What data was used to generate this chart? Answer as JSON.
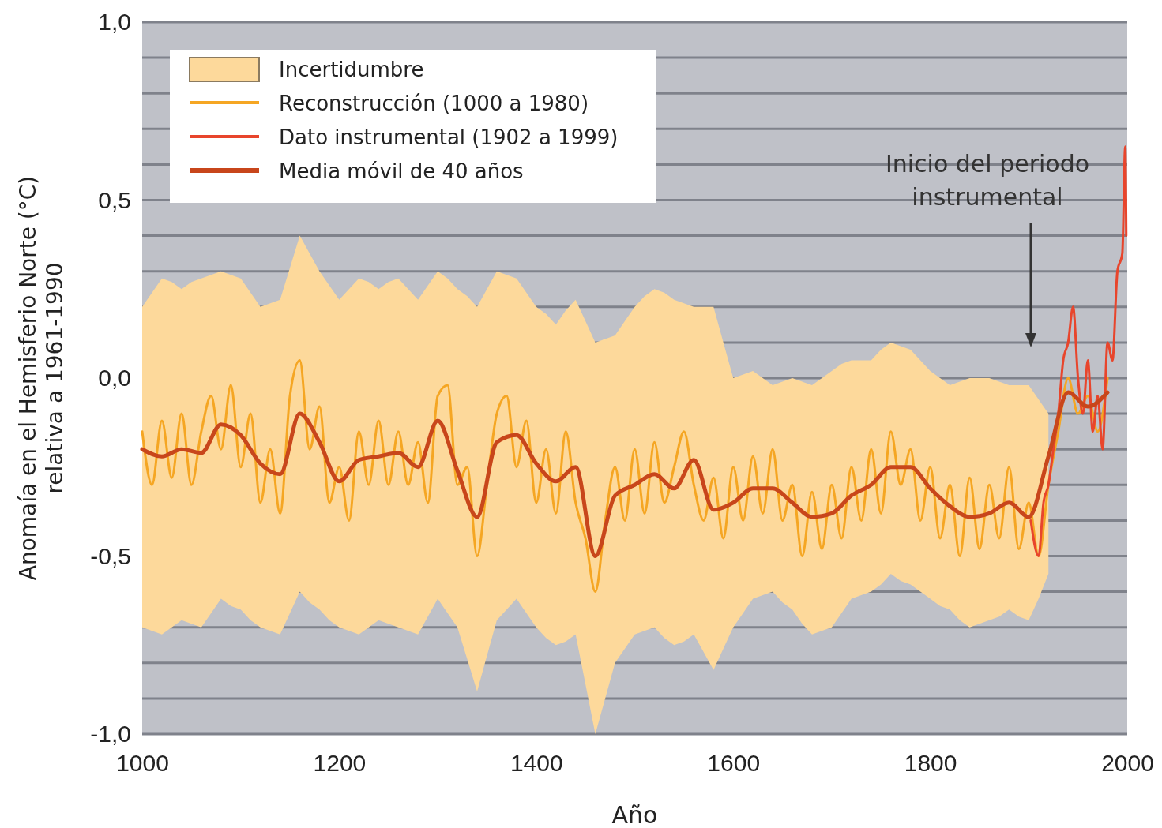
{
  "chart_data": {
    "type": "line",
    "xlabel": "Año",
    "ylabel": "Anomaía en el Hemisferio Norte (°C)\nrelativa a 1961-1990",
    "xlim": [
      1000,
      2000
    ],
    "xticks": [
      1000,
      1200,
      1400,
      1600,
      1800,
      2000
    ],
    "ylim": [
      -1.0,
      1.0
    ],
    "yticks": [
      {
        "value": -1.0,
        "label": "-1,0"
      },
      {
        "value": -0.9,
        "label": null
      },
      {
        "value": -0.8,
        "label": null
      },
      {
        "value": -0.7,
        "label": null
      },
      {
        "value": -0.6,
        "label": null
      },
      {
        "value": -0.5,
        "label": "-0,5"
      },
      {
        "value": -0.4,
        "label": null
      },
      {
        "value": -0.3,
        "label": null
      },
      {
        "value": -0.2,
        "label": null
      },
      {
        "value": -0.1,
        "label": null
      },
      {
        "value": 0,
        "label": "0,0"
      },
      {
        "value": 0.1,
        "label": null
      },
      {
        "value": 0.2,
        "label": null
      },
      {
        "value": 0.3,
        "label": null
      },
      {
        "value": 0.4,
        "label": null
      },
      {
        "value": 0.5,
        "label": "0,5"
      },
      {
        "value": 0.6,
        "label": null
      },
      {
        "value": 0.7,
        "label": null
      },
      {
        "value": 0.8,
        "label": null
      },
      {
        "value": 0.9,
        "label": null
      },
      {
        "value": 1.0,
        "label": "1,0"
      }
    ],
    "grid": "y",
    "legend": "top left",
    "annotations": [
      "Inicio del periodo\ninstrumental"
    ],
    "series": [
      {
        "name": "Incertidumbre",
        "type": "area",
        "color": "#fdd99b"
      },
      {
        "name": "Reconstrucción (1000 a 1980)",
        "color": "#f5a623",
        "x": [
          1000,
          1010,
          1020,
          1030,
          1040,
          1050,
          1060,
          1070,
          1080,
          1090,
          1100,
          1110,
          1120,
          1130,
          1140,
          1150,
          1160,
          1170,
          1180,
          1190,
          1200,
          1210,
          1220,
          1230,
          1240,
          1250,
          1260,
          1270,
          1280,
          1290,
          1300,
          1310,
          1320,
          1330,
          1340,
          1350,
          1360,
          1370,
          1380,
          1390,
          1400,
          1410,
          1420,
          1430,
          1440,
          1450,
          1460,
          1470,
          1480,
          1490,
          1500,
          1510,
          1520,
          1530,
          1540,
          1550,
          1560,
          1570,
          1580,
          1590,
          1600,
          1610,
          1620,
          1630,
          1640,
          1650,
          1660,
          1670,
          1680,
          1690,
          1700,
          1710,
          1720,
          1730,
          1740,
          1750,
          1760,
          1770,
          1780,
          1790,
          1800,
          1810,
          1820,
          1830,
          1840,
          1850,
          1860,
          1870,
          1880,
          1890,
          1900,
          1910,
          1920,
          1930,
          1940,
          1950,
          1960,
          1970,
          1980
        ],
        "values": [
          -0.15,
          -0.3,
          -0.12,
          -0.28,
          -0.1,
          -0.3,
          -0.15,
          -0.05,
          -0.2,
          -0.02,
          -0.25,
          -0.1,
          -0.35,
          -0.2,
          -0.38,
          -0.05,
          0.05,
          -0.2,
          -0.08,
          -0.35,
          -0.25,
          -0.4,
          -0.15,
          -0.3,
          -0.12,
          -0.3,
          -0.15,
          -0.3,
          -0.18,
          -0.35,
          -0.05,
          -0.02,
          -0.3,
          -0.25,
          -0.5,
          -0.3,
          -0.1,
          -0.05,
          -0.25,
          -0.12,
          -0.35,
          -0.2,
          -0.38,
          -0.15,
          -0.35,
          -0.45,
          -0.6,
          -0.4,
          -0.25,
          -0.4,
          -0.2,
          -0.38,
          -0.18,
          -0.35,
          -0.25,
          -0.15,
          -0.3,
          -0.4,
          -0.28,
          -0.45,
          -0.25,
          -0.4,
          -0.22,
          -0.38,
          -0.2,
          -0.4,
          -0.3,
          -0.5,
          -0.32,
          -0.48,
          -0.3,
          -0.45,
          -0.25,
          -0.4,
          -0.2,
          -0.38,
          -0.15,
          -0.3,
          -0.2,
          -0.4,
          -0.25,
          -0.45,
          -0.3,
          -0.5,
          -0.28,
          -0.48,
          -0.3,
          -0.45,
          -0.25,
          -0.48,
          -0.35,
          -0.5,
          -0.3,
          -0.15,
          0.0,
          -0.1,
          -0.05,
          -0.15,
          0.0
        ],
        "lower": [
          -0.7,
          -0.71,
          -0.72,
          -0.7,
          -0.68,
          -0.69,
          -0.7,
          -0.66,
          -0.62,
          -0.64,
          -0.65,
          -0.68,
          -0.7,
          -0.71,
          -0.72,
          -0.66,
          -0.6,
          -0.63,
          -0.65,
          -0.68,
          -0.7,
          -0.71,
          -0.72,
          -0.7,
          -0.68,
          -0.69,
          -0.7,
          -0.71,
          -0.72,
          -0.67,
          -0.62,
          -0.66,
          -0.7,
          -0.79,
          -0.88,
          -0.78,
          -0.68,
          -0.65,
          -0.62,
          -0.66,
          -0.7,
          -0.73,
          -0.75,
          -0.74,
          -0.72,
          -0.86,
          -1.0,
          -0.9,
          -0.8,
          -0.76,
          -0.72,
          -0.71,
          -0.7,
          -0.73,
          -0.75,
          -0.74,
          -0.72,
          -0.77,
          -0.82,
          -0.76,
          -0.7,
          -0.66,
          -0.62,
          -0.61,
          -0.6,
          -0.63,
          -0.65,
          -0.69,
          -0.72,
          -0.71,
          -0.7,
          -0.66,
          -0.62,
          -0.61,
          -0.6,
          -0.58,
          -0.55,
          -0.57,
          -0.58,
          -0.6,
          -0.62,
          -0.64,
          -0.65,
          -0.68,
          -0.7,
          -0.69,
          -0.68,
          -0.67,
          -0.65,
          -0.67,
          -0.68,
          -0.62,
          -0.55,
          null,
          null,
          null,
          null,
          null,
          null
        ],
        "upper": [
          0.2,
          0.24,
          0.28,
          0.27,
          0.25,
          0.27,
          0.28,
          0.29,
          0.3,
          0.29,
          0.28,
          0.24,
          0.2,
          0.21,
          0.22,
          0.31,
          0.4,
          0.35,
          0.3,
          0.26,
          0.22,
          0.25,
          0.28,
          0.27,
          0.25,
          0.27,
          0.28,
          0.25,
          0.22,
          0.26,
          0.3,
          0.28,
          0.25,
          0.23,
          0.2,
          0.25,
          0.3,
          0.29,
          0.28,
          0.24,
          0.2,
          0.18,
          0.15,
          0.19,
          0.22,
          0.16,
          0.1,
          0.11,
          0.12,
          0.16,
          0.2,
          0.23,
          0.25,
          0.24,
          0.22,
          0.21,
          0.2,
          0.2,
          0.2,
          0.1,
          0.0,
          0.01,
          0.02,
          0.0,
          -0.02,
          -0.01,
          0.0,
          -0.01,
          -0.02,
          0.0,
          0.02,
          0.04,
          0.05,
          0.05,
          0.05,
          0.08,
          0.1,
          0.09,
          0.08,
          0.05,
          0.02,
          0.0,
          -0.02,
          -0.01,
          0.0,
          0.0,
          0.0,
          -0.01,
          -0.02,
          -0.02,
          -0.02,
          -0.06,
          -0.1,
          null,
          null,
          null,
          null,
          null,
          null
        ]
      },
      {
        "name": "Dato instrumental (1902 a 1999)",
        "color": "#e8452c",
        "x": [
          1902,
          1910,
          1915,
          1920,
          1925,
          1930,
          1935,
          1940,
          1945,
          1950,
          1955,
          1960,
          1965,
          1970,
          1975,
          1980,
          1985,
          1990,
          1995,
          1998,
          1999
        ],
        "values": [
          -0.4,
          -0.5,
          -0.35,
          -0.3,
          -0.2,
          -0.1,
          0.05,
          0.1,
          0.2,
          0.0,
          -0.1,
          0.05,
          -0.15,
          -0.05,
          -0.2,
          0.1,
          0.05,
          0.3,
          0.35,
          0.65,
          0.4
        ]
      },
      {
        "name": "Media móvil de 40 años",
        "color": "#c8461b",
        "x": [
          1000,
          1020,
          1040,
          1060,
          1080,
          1100,
          1120,
          1140,
          1160,
          1180,
          1200,
          1220,
          1240,
          1260,
          1280,
          1300,
          1320,
          1340,
          1360,
          1380,
          1400,
          1420,
          1440,
          1460,
          1480,
          1500,
          1520,
          1540,
          1560,
          1580,
          1600,
          1620,
          1640,
          1660,
          1680,
          1700,
          1720,
          1740,
          1760,
          1780,
          1800,
          1820,
          1840,
          1860,
          1880,
          1900,
          1920,
          1940,
          1960,
          1980
        ],
        "values": [
          -0.2,
          -0.22,
          -0.2,
          -0.21,
          -0.13,
          -0.16,
          -0.24,
          -0.27,
          -0.1,
          -0.18,
          -0.29,
          -0.23,
          -0.22,
          -0.21,
          -0.25,
          -0.12,
          -0.26,
          -0.39,
          -0.18,
          -0.16,
          -0.24,
          -0.29,
          -0.25,
          -0.5,
          -0.33,
          -0.3,
          -0.27,
          -0.31,
          -0.23,
          -0.37,
          -0.35,
          -0.31,
          -0.31,
          -0.35,
          -0.39,
          -0.38,
          -0.33,
          -0.3,
          -0.25,
          -0.25,
          -0.31,
          -0.36,
          -0.39,
          -0.38,
          -0.35,
          -0.39,
          -0.22,
          -0.04,
          -0.08,
          -0.04
        ]
      }
    ]
  }
}
